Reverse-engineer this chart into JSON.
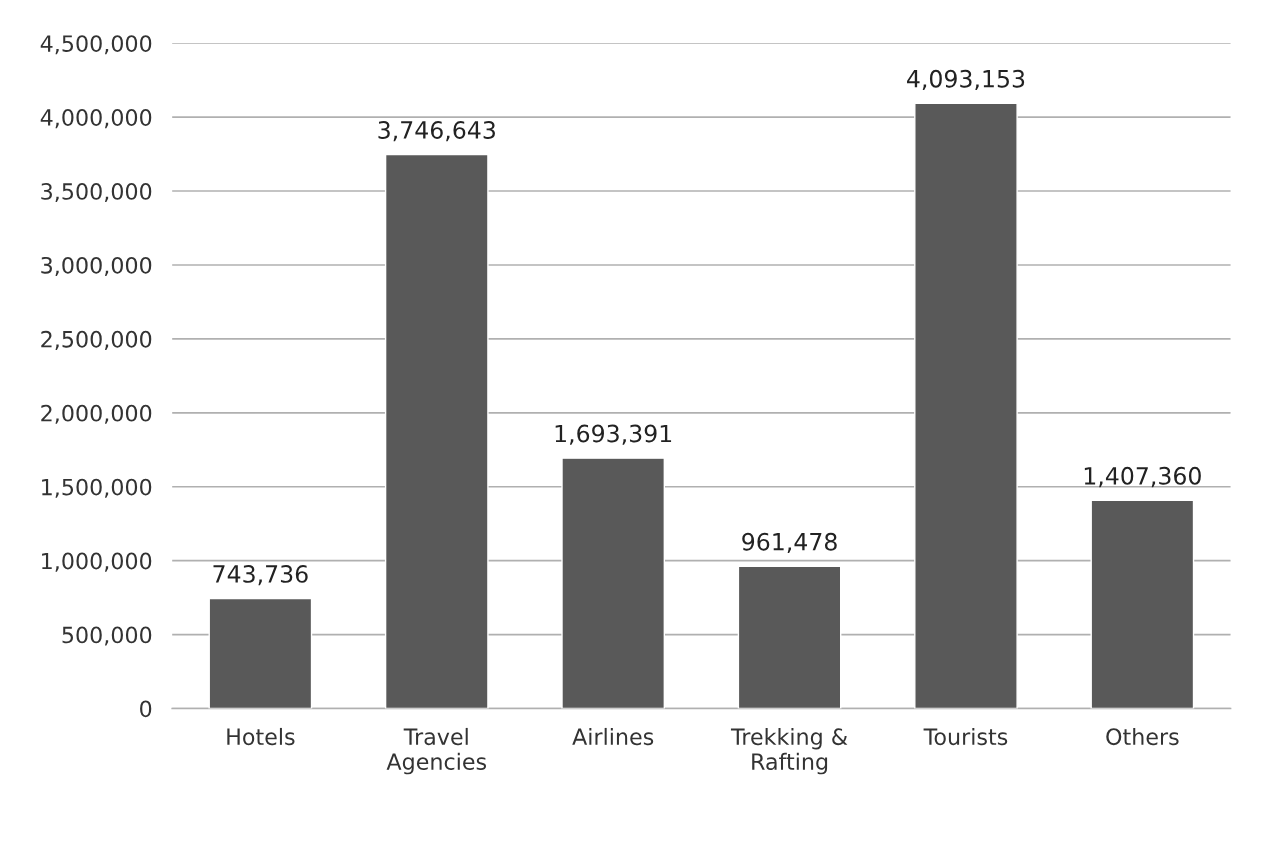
{
  "chart_data": {
    "type": "bar",
    "categories": [
      "Hotels",
      "Travel\nAgencies",
      "Airlines",
      "Trekking &\nRafting",
      "Tourists",
      "Others"
    ],
    "values": [
      743736,
      3746643,
      1693391,
      961478,
      4093153,
      1407360
    ],
    "color": "#595959",
    "value_labels": [
      "743,736",
      "3,746,643",
      "1,693,391",
      "961,478",
      "4,093,153",
      "1,407,360"
    ],
    "ylim": [
      0,
      4500000
    ],
    "yticks": [
      0,
      {
        "value": 500000,
        "label": "500,000"
      },
      {
        "value": 1000000,
        "label": "1,000,000"
      },
      {
        "value": 1500000,
        "label": "1,500,000"
      },
      {
        "value": 2000000,
        "label": "2,000,000"
      },
      {
        "value": 2500000,
        "label": "2,500,000"
      },
      {
        "value": 3000000,
        "label": "3,000,000"
      },
      {
        "value": 3500000,
        "label": "3,500,000"
      },
      {
        "value": 4000000,
        "label": "4,000,000"
      },
      {
        "value": 4500000,
        "label": "4,500,000"
      }
    ],
    "grid": "y",
    "legend": false
  }
}
